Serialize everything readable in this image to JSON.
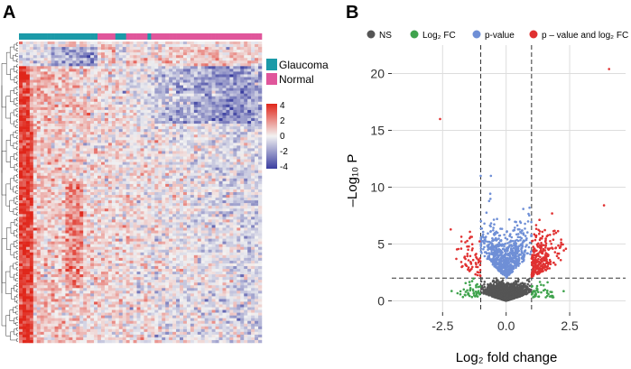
{
  "panels": {
    "a_label": "A",
    "b_label": "B"
  },
  "heatmap_legend": {
    "groups": [
      {
        "name": "Glaucoma",
        "color": "#1B9AA8"
      },
      {
        "name": "Normal",
        "color": "#E0569B"
      }
    ],
    "colorbar_ticks": [
      "4",
      "2",
      "0",
      "-2",
      "-4"
    ]
  },
  "volcano_legend": {
    "items": [
      {
        "label": "NS",
        "color": "#555555"
      },
      {
        "label": "Log₂ FC",
        "color": "#3FA34D"
      },
      {
        "label": "p-value",
        "color": "#6F8FD6"
      },
      {
        "label": "p – value and log₂ FC",
        "color": "#E03030"
      }
    ]
  },
  "chart_data": [
    {
      "type": "heatmap",
      "title": "",
      "annotation_track": [
        "Glaucoma",
        "Normal",
        "Glaucoma",
        "Normal",
        "Glaucoma",
        "Normal"
      ],
      "annotation_track_lengths": [
        22,
        5,
        3,
        6,
        1,
        31
      ],
      "color_scale": {
        "min": -4,
        "max": 4,
        "low": "#3A3EA0",
        "mid": "#F2F2F2",
        "high": "#E0261A"
      },
      "n_columns": 68,
      "n_rows": 110
    },
    {
      "type": "scatter",
      "title": "",
      "xlabel": "Log₂ fold change",
      "ylabel": "–Log₁₀ P",
      "xlim": [
        -4.5,
        4.7
      ],
      "ylim": [
        -1,
        22.5
      ],
      "xticks": [
        "-2.5",
        "0.0",
        "2.5"
      ],
      "xtick_values": [
        -2.5,
        0,
        2.5
      ],
      "yticks": [
        "0",
        "5",
        "10",
        "15",
        "20"
      ],
      "ytick_values": [
        0,
        5,
        10,
        15,
        20
      ],
      "thresholds": {
        "log2fc": [
          -1,
          1
        ],
        "neg_log10_p": 2
      },
      "series": [
        {
          "name": "NS",
          "approx_points": 2000,
          "x_range": [
            -1,
            1
          ],
          "y_range": [
            0,
            2
          ]
        },
        {
          "name": "Log₂ FC",
          "approx_points": 90,
          "x_range": [
            -2.2,
            2.6
          ],
          "y_range": [
            0,
            2
          ]
        },
        {
          "name": "p-value",
          "approx_points": 700,
          "x_range": [
            -1,
            1
          ],
          "y_range": [
            2,
            11
          ]
        },
        {
          "name": "p – value and log₂ FC",
          "approx_points": 330,
          "x_range": [
            -2.7,
            4.1
          ],
          "y_range": [
            2,
            20.5
          ]
        }
      ],
      "notable_points": [
        {
          "x": 4.05,
          "y": 20.4,
          "series": "p – value and log₂ FC"
        },
        {
          "x": -2.6,
          "y": 16.0,
          "series": "p – value and log₂ FC"
        },
        {
          "x": -1.0,
          "y": 11.0,
          "series": "p-value"
        },
        {
          "x": -0.6,
          "y": 11.0,
          "series": "p-value"
        },
        {
          "x": 3.85,
          "y": 8.4,
          "series": "p – value and log₂ FC"
        }
      ]
    }
  ]
}
